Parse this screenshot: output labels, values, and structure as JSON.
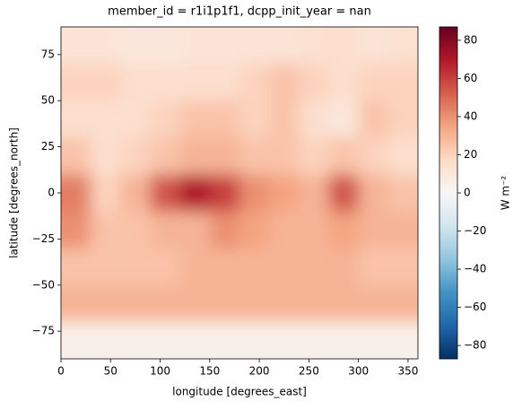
{
  "chart_data": {
    "type": "heatmap",
    "title": "member_id = r1i1p1f1, dcpp_init_year = nan",
    "x_label": "longitude [degrees_east]",
    "y_label": "latitude [degrees_north]",
    "colorbar_label": "W m⁻²",
    "x": [
      15,
      45,
      75,
      105,
      135,
      165,
      195,
      225,
      255,
      285,
      315,
      345
    ],
    "y": [
      80,
      60,
      40,
      20,
      0,
      -20,
      -40,
      -60,
      -80
    ],
    "values": [
      [
        12,
        12,
        10,
        10,
        12,
        12,
        12,
        12,
        14,
        15,
        12,
        14
      ],
      [
        20,
        20,
        15,
        15,
        15,
        15,
        20,
        25,
        20,
        15,
        20,
        20
      ],
      [
        15,
        15,
        15,
        20,
        25,
        25,
        20,
        25,
        15,
        10,
        25,
        20
      ],
      [
        25,
        15,
        20,
        25,
        30,
        30,
        25,
        25,
        20,
        25,
        20,
        15
      ],
      [
        45,
        20,
        30,
        55,
        70,
        60,
        40,
        35,
        30,
        55,
        30,
        25
      ],
      [
        40,
        25,
        25,
        30,
        30,
        40,
        35,
        30,
        30,
        35,
        30,
        30
      ],
      [
        25,
        25,
        25,
        25,
        30,
        30,
        30,
        30,
        30,
        30,
        25,
        25
      ],
      [
        30,
        30,
        30,
        30,
        30,
        30,
        30,
        30,
        30,
        30,
        30,
        30
      ],
      [
        5,
        5,
        5,
        5,
        5,
        5,
        5,
        5,
        5,
        5,
        5,
        5
      ]
    ],
    "xlim": [
      0,
      360
    ],
    "ylim": [
      -90,
      90
    ],
    "clim": [
      -87,
      87
    ],
    "xticks": [
      0,
      50,
      100,
      150,
      200,
      250,
      300,
      350
    ],
    "yticks": [
      {
        "value": -75,
        "label": "−75"
      },
      {
        "value": -50,
        "label": "−50"
      },
      {
        "value": -25,
        "label": "−25"
      },
      0,
      25,
      50,
      75
    ],
    "cticks": [
      {
        "value": -80,
        "label": "−80"
      },
      {
        "value": -60,
        "label": "−60"
      },
      {
        "value": -40,
        "label": "−40"
      },
      {
        "value": -20,
        "label": "−20"
      },
      0,
      20,
      40,
      60,
      80
    ],
    "colormap": [
      "#053061",
      "#2166ac",
      "#4393c3",
      "#92c5de",
      "#d1e5f0",
      "#f7f7f7",
      "#fddbc7",
      "#f4a582",
      "#d6604d",
      "#b2182b",
      "#67001f"
    ]
  }
}
